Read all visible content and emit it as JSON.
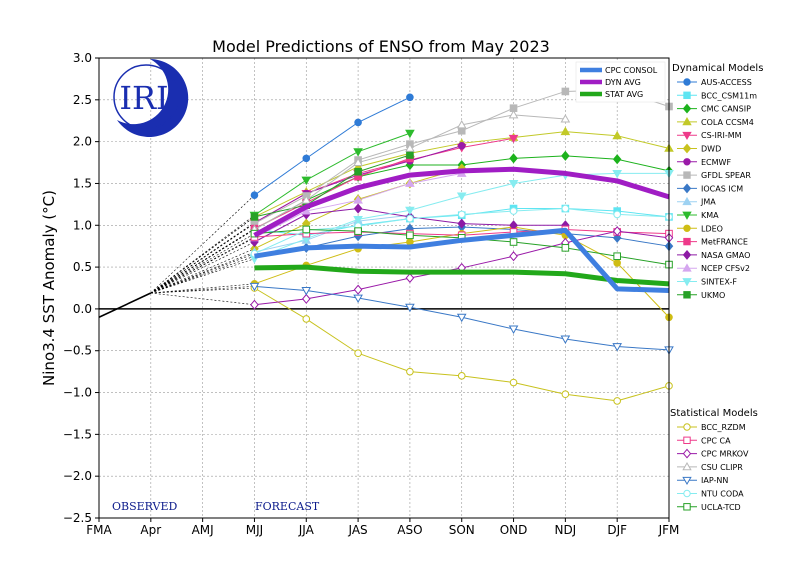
{
  "chart_data": {
    "type": "line",
    "title": "Model Predictions of ENSO from May 2023",
    "xlabel": "",
    "ylabel": "Nino3.4 SST Anomaly (°C)",
    "ylim": [
      -2.5,
      3.0
    ],
    "yticks": [
      "3.0",
      "2.5",
      "2.0",
      "1.5",
      "1.0",
      "0.5",
      "0.0",
      "−0.5",
      "−1.0",
      "−1.5",
      "−2.0",
      "−2.5"
    ],
    "ytick_values": [
      3.0,
      2.5,
      2.0,
      1.5,
      1.0,
      0.5,
      0.0,
      -0.5,
      -1.0,
      -1.5,
      -2.0,
      -2.5
    ],
    "categories": [
      "FMA",
      "Apr",
      "AMJ",
      "MJJ",
      "JJA",
      "JAS",
      "ASO",
      "SON",
      "OND",
      "NDJ",
      "DJF",
      "JFM"
    ],
    "grid": true,
    "observed_label": "OBSERVED",
    "forecast_label": "FORECAST",
    "logo_text": "IRI",
    "observed": {
      "x": [
        0,
        1
      ],
      "values": [
        -0.1,
        0.19
      ]
    },
    "averages_legend": [
      {
        "name": "CPC CONSOL",
        "color": "#3f7fe0",
        "x": [
          3,
          4,
          5,
          6,
          7,
          8,
          9,
          10,
          11
        ],
        "values": [
          0.63,
          0.73,
          0.75,
          0.74,
          0.82,
          0.88,
          0.94,
          0.24,
          0.22
        ]
      },
      {
        "name": "DYN AVG",
        "color": "#a01dc4",
        "x": [
          3,
          4,
          5,
          6,
          7,
          8,
          9,
          10,
          11
        ],
        "values": [
          0.88,
          1.22,
          1.45,
          1.6,
          1.65,
          1.67,
          1.62,
          1.53,
          1.34
        ]
      },
      {
        "name": "STAT AVG",
        "color": "#22a81a",
        "x": [
          3,
          4,
          5,
          6,
          7,
          8,
          9,
          10,
          11
        ],
        "values": [
          0.49,
          0.5,
          0.45,
          0.44,
          0.44,
          0.44,
          0.42,
          0.34,
          0.3
        ]
      }
    ],
    "dynamical_title": "Dynamical Models",
    "dynamical": [
      {
        "name": "AUS-ACCESS",
        "color": "#2f7bd6",
        "marker": "circle",
        "filled": true,
        "values": [
          1.36,
          1.8,
          2.23,
          2.53
        ]
      },
      {
        "name": "BCC_CSM11m",
        "color": "#5fe5f2",
        "marker": "square",
        "filled": true,
        "values": [
          0.95,
          0.88,
          1.0,
          1.08,
          1.12,
          1.2,
          1.2,
          1.17,
          1.1
        ]
      },
      {
        "name": "CMC CANSIP",
        "color": "#1cb21c",
        "marker": "diamond",
        "filled": true,
        "values": [
          0.95,
          1.3,
          1.58,
          1.72,
          1.72,
          1.8,
          1.83,
          1.79,
          1.65
        ]
      },
      {
        "name": "COLA CCSM4",
        "color": "#c2c928",
        "marker": "triangle-up",
        "filled": true,
        "values": [
          1.1,
          1.4,
          1.7,
          1.86,
          1.98,
          2.05,
          2.12,
          2.07,
          1.92
        ]
      },
      {
        "name": "CS-IRI-MM",
        "color": "#ee3a8a",
        "marker": "triangle-down",
        "filled": true,
        "values": [
          1.03,
          1.38,
          1.62,
          1.78,
          1.93,
          2.04
        ]
      },
      {
        "name": "DWD",
        "color": "#c8c21e",
        "marker": "diamond",
        "filled": true,
        "values": [
          0.72,
          1.02,
          1.31,
          1.5,
          1.68
        ]
      },
      {
        "name": "ECMWF",
        "color": "#9a1aa8",
        "marker": "circle",
        "filled": true,
        "values": [
          1.03,
          1.38,
          1.6,
          1.77,
          1.95
        ]
      },
      {
        "name": "GFDL SPEAR",
        "color": "#b8b8b8",
        "marker": "square",
        "filled": true,
        "values": [
          1.02,
          1.35,
          1.78,
          1.97,
          2.13,
          2.4,
          2.6,
          2.62,
          2.42
        ]
      },
      {
        "name": "IOCAS ICM",
        "color": "#3a78c6",
        "marker": "diamond",
        "filled": true,
        "values": [
          0.63,
          0.73,
          0.87,
          0.96,
          0.98,
          0.95,
          0.9,
          0.85,
          0.75
        ]
      },
      {
        "name": "JMA",
        "color": "#9ed2f2",
        "marker": "triangle-up",
        "filled": true,
        "values": [
          0.68,
          0.82,
          1.05,
          1.12
        ]
      },
      {
        "name": "KMA",
        "color": "#2dbb2d",
        "marker": "triangle-down",
        "filled": true,
        "values": [
          1.12,
          1.54,
          1.88,
          2.1
        ]
      },
      {
        "name": "LDEO",
        "color": "#cfbd14",
        "marker": "circle",
        "filled": true,
        "values": [
          0.3,
          0.52,
          0.72,
          0.8,
          0.9,
          0.98,
          0.88,
          0.55,
          -0.1
        ]
      },
      {
        "name": "MetFRANCE",
        "color": "#ee3a8a",
        "marker": "square",
        "filled": true,
        "values": [
          0.96,
          1.27,
          1.58,
          1.8
        ]
      },
      {
        "name": "NASA GMAO",
        "color": "#8d1aa5",
        "marker": "diamond",
        "filled": true,
        "values": [
          0.8,
          1.13,
          1.2,
          1.1,
          1.02,
          1.0,
          1.0
        ]
      },
      {
        "name": "NCEP CFSv2",
        "color": "#d5a7ef",
        "marker": "triangle-up",
        "filled": true,
        "values": [
          0.85,
          1.17,
          1.3,
          1.5,
          1.62
        ]
      },
      {
        "name": "SINTEX-F",
        "color": "#86ecf0",
        "marker": "triangle-down",
        "filled": true,
        "values": [
          0.6,
          0.84,
          1.07,
          1.18,
          1.35,
          1.5,
          1.6,
          1.62,
          1.62
        ]
      },
      {
        "name": "UKMO",
        "color": "#27a127",
        "marker": "square",
        "filled": true,
        "values": [
          1.1,
          1.24,
          1.64,
          1.84
        ]
      }
    ],
    "statistical_title": "Statistical Models",
    "statistical": [
      {
        "name": "BCC_RZDM",
        "color": "#c8c21e",
        "marker": "circle",
        "filled": false,
        "values": [
          0.25,
          -0.12,
          -0.53,
          -0.75,
          -0.8,
          -0.88,
          -1.02,
          -1.1,
          -0.92
        ]
      },
      {
        "name": "CPC CA",
        "color": "#ee3a8a",
        "marker": "square",
        "filled": false,
        "values": [
          0.86,
          0.9,
          0.92,
          0.9,
          0.88,
          0.92,
          0.95,
          0.92,
          0.9
        ]
      },
      {
        "name": "CPC MRKOV",
        "color": "#9a1aa8",
        "marker": "diamond",
        "filled": false,
        "values": [
          0.05,
          0.12,
          0.23,
          0.37,
          0.49,
          0.63,
          0.79,
          0.93,
          0.85
        ]
      },
      {
        "name": "CSU CLIPR",
        "color": "#b8b8b8",
        "marker": "triangle-up",
        "filled": false,
        "values": [
          0.95,
          1.3,
          1.75,
          1.92,
          2.2,
          2.32,
          2.27
        ]
      },
      {
        "name": "IAP-NN",
        "color": "#3a78c6",
        "marker": "triangle-down",
        "filled": false,
        "values": [
          0.27,
          0.22,
          0.13,
          0.02,
          -0.1,
          -0.24,
          -0.36,
          -0.45,
          -0.49
        ]
      },
      {
        "name": "NTU CODA",
        "color": "#86ecf0",
        "marker": "circle",
        "filled": false,
        "values": [
          0.66,
          0.94,
          0.99,
          1.08,
          1.13,
          1.17,
          1.2,
          1.13,
          1.1
        ]
      },
      {
        "name": "UCLA-TCD",
        "color": "#27a127",
        "marker": "square",
        "filled": false,
        "values": [
          0.9,
          0.95,
          0.93,
          0.88,
          0.85,
          0.8,
          0.73,
          0.63,
          0.53
        ]
      }
    ]
  }
}
